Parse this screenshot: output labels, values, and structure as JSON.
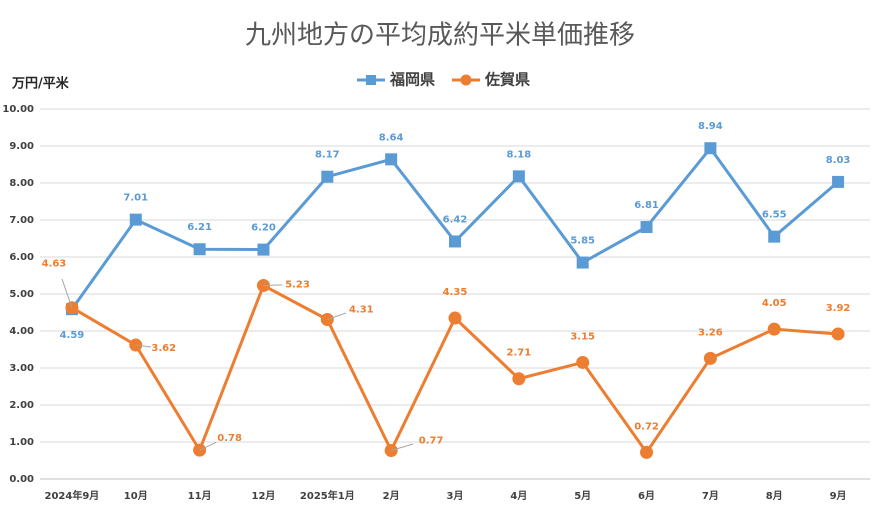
{
  "chart_data": {
    "type": "line",
    "title": "九州地方の平均成約平米単価推移",
    "y_label": "万円/平米",
    "categories": [
      "2024年9月",
      "10月",
      "11月",
      "12月",
      "2025年1月",
      "2月",
      "3月",
      "4月",
      "5月",
      "6月",
      "7月",
      "8月",
      "9月"
    ],
    "series": [
      {
        "name": "福岡県",
        "color": "#5b9bd5",
        "marker": "square",
        "values": [
          4.59,
          7.01,
          6.21,
          6.2,
          8.17,
          8.64,
          6.42,
          8.18,
          5.85,
          6.81,
          8.94,
          6.55,
          8.03
        ],
        "value_labels": [
          "4.59",
          "7.01",
          "6.21",
          "6.20",
          "8.17",
          "8.64",
          "6.42",
          "8.18",
          "5.85",
          "6.81",
          "8.94",
          "6.55",
          "8.03"
        ]
      },
      {
        "name": "佐賀県",
        "color": "#ed7d31",
        "marker": "circle",
        "values": [
          4.63,
          3.62,
          0.78,
          5.23,
          4.31,
          0.77,
          4.35,
          2.71,
          3.15,
          0.72,
          3.26,
          4.05,
          3.92
        ],
        "value_labels": [
          "4.63",
          "3.62",
          "0.78",
          "5.23",
          "4.31",
          "0.77",
          "4.35",
          "2.71",
          "3.15",
          "0.72",
          "3.26",
          "4.05",
          "3.92"
        ]
      }
    ],
    "ylim": [
      0,
      10
    ],
    "yticks": [
      {
        "value": 0,
        "label": "0.00"
      },
      {
        "value": 1,
        "label": "1.00"
      },
      {
        "value": 2,
        "label": "2.00"
      },
      {
        "value": 3,
        "label": "3.00"
      },
      {
        "value": 4,
        "label": "4.00"
      },
      {
        "value": 5,
        "label": "5.00"
      },
      {
        "value": 6,
        "label": "6.00"
      },
      {
        "value": 7,
        "label": "7.00"
      },
      {
        "value": 8,
        "label": "8.00"
      },
      {
        "value": 9,
        "label": "9.00"
      },
      {
        "value": 10,
        "label": "10.00"
      }
    ],
    "grid": true,
    "legend": "top"
  }
}
